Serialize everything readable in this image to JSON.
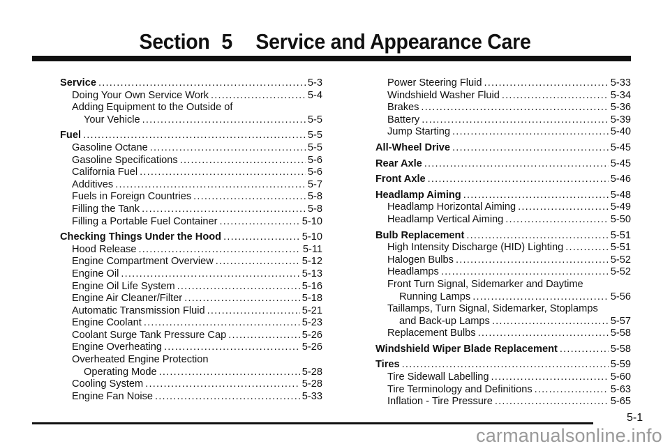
{
  "header": {
    "section_label": "Section",
    "section_number": "5",
    "title": "Service and Appearance Care"
  },
  "left_column": [
    {
      "text": "Service",
      "page": "5-3",
      "style": "bold"
    },
    {
      "text": "Doing Your Own Service Work",
      "page": "5-4",
      "style": "sub"
    },
    {
      "text": "Adding Equipment to the Outside of",
      "page": "",
      "style": "sub"
    },
    {
      "text": "Your Vehicle",
      "page": "5-5",
      "style": "cont"
    },
    {
      "text": "Fuel",
      "page": "5-5",
      "style": "bold"
    },
    {
      "text": "Gasoline Octane",
      "page": "5-5",
      "style": "sub"
    },
    {
      "text": "Gasoline Specifications",
      "page": "5-6",
      "style": "sub"
    },
    {
      "text": "California Fuel",
      "page": "5-6",
      "style": "sub"
    },
    {
      "text": "Additives",
      "page": "5-7",
      "style": "sub"
    },
    {
      "text": "Fuels in Foreign Countries",
      "page": "5-8",
      "style": "sub"
    },
    {
      "text": "Filling the Tank",
      "page": "5-8",
      "style": "sub"
    },
    {
      "text": "Filling a Portable Fuel Container",
      "page": "5-10",
      "style": "sub"
    },
    {
      "text": "Checking Things Under the Hood",
      "page": "5-10",
      "style": "bold"
    },
    {
      "text": "Hood Release",
      "page": "5-11",
      "style": "sub"
    },
    {
      "text": "Engine Compartment Overview",
      "page": "5-12",
      "style": "sub"
    },
    {
      "text": "Engine Oil",
      "page": "5-13",
      "style": "sub"
    },
    {
      "text": "Engine Oil Life System",
      "page": "5-16",
      "style": "sub"
    },
    {
      "text": "Engine Air Cleaner/Filter",
      "page": "5-18",
      "style": "sub"
    },
    {
      "text": "Automatic Transmission Fluid",
      "page": "5-21",
      "style": "sub"
    },
    {
      "text": "Engine Coolant",
      "page": "5-23",
      "style": "sub"
    },
    {
      "text": "Coolant Surge Tank Pressure Cap",
      "page": "5-26",
      "style": "sub"
    },
    {
      "text": "Engine Overheating",
      "page": "5-26",
      "style": "sub"
    },
    {
      "text": "Overheated Engine Protection",
      "page": "",
      "style": "sub"
    },
    {
      "text": "Operating Mode",
      "page": "5-28",
      "style": "cont"
    },
    {
      "text": "Cooling System",
      "page": "5-28",
      "style": "sub"
    },
    {
      "text": "Engine Fan Noise",
      "page": "5-33",
      "style": "sub"
    }
  ],
  "right_column": [
    {
      "text": "Power Steering Fluid",
      "page": "5-33",
      "style": "sub"
    },
    {
      "text": "Windshield Washer Fluid",
      "page": "5-34",
      "style": "sub"
    },
    {
      "text": "Brakes",
      "page": "5-36",
      "style": "sub"
    },
    {
      "text": "Battery",
      "page": "5-39",
      "style": "sub"
    },
    {
      "text": "Jump Starting",
      "page": "5-40",
      "style": "sub"
    },
    {
      "text": "All-Wheel Drive",
      "page": "5-45",
      "style": "bold"
    },
    {
      "text": "Rear Axle",
      "page": "5-45",
      "style": "bold"
    },
    {
      "text": "Front Axle",
      "page": "5-46",
      "style": "bold"
    },
    {
      "text": "Headlamp Aiming",
      "page": "5-48",
      "style": "bold"
    },
    {
      "text": "Headlamp Horizontal Aiming",
      "page": "5-49",
      "style": "sub"
    },
    {
      "text": "Headlamp Vertical Aiming",
      "page": "5-50",
      "style": "sub"
    },
    {
      "text": "Bulb Replacement",
      "page": "5-51",
      "style": "bold"
    },
    {
      "text": "High Intensity Discharge (HID) Lighting",
      "page": "5-51",
      "style": "sub"
    },
    {
      "text": "Halogen Bulbs",
      "page": "5-52",
      "style": "sub"
    },
    {
      "text": "Headlamps",
      "page": "5-52",
      "style": "sub"
    },
    {
      "text": "Front Turn Signal, Sidemarker and Daytime",
      "page": "",
      "style": "sub"
    },
    {
      "text": "Running Lamps",
      "page": "5-56",
      "style": "cont"
    },
    {
      "text": "Taillamps, Turn Signal, Sidemarker, Stoplamps",
      "page": "",
      "style": "sub"
    },
    {
      "text": "and Back-up Lamps",
      "page": "5-57",
      "style": "cont"
    },
    {
      "text": "Replacement Bulbs",
      "page": "5-58",
      "style": "sub"
    },
    {
      "text": "Windshield Wiper Blade Replacement",
      "page": "5-58",
      "style": "bold"
    },
    {
      "text": "Tires",
      "page": "5-59",
      "style": "bold"
    },
    {
      "text": "Tire Sidewall Labelling",
      "page": "5-60",
      "style": "sub"
    },
    {
      "text": "Tire Terminology and Definitions",
      "page": "5-63",
      "style": "sub"
    },
    {
      "text": "Inflation - Tire Pressure",
      "page": "5-65",
      "style": "sub"
    }
  ],
  "footer": {
    "page_number": "5-1",
    "watermark": "carmanualsonline.info"
  }
}
